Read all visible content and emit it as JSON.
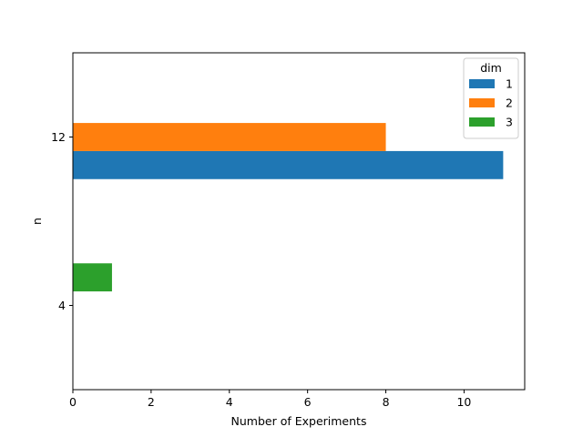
{
  "chart_data": {
    "type": "bar",
    "orientation": "horizontal",
    "categories": [
      "4",
      "12"
    ],
    "series": [
      {
        "name": "1",
        "values": [
          0,
          11
        ],
        "color": "#1f77b4"
      },
      {
        "name": "2",
        "values": [
          0,
          8
        ],
        "color": "#ff7f0e"
      },
      {
        "name": "3",
        "values": [
          1,
          0
        ],
        "color": "#2ca02c"
      }
    ],
    "xlabel": "Number of Experiments",
    "ylabel": "n",
    "xlim": [
      0,
      11.55
    ],
    "xticks": [
      0,
      2,
      4,
      6,
      8,
      10
    ],
    "grid": false,
    "legend": {
      "title": "dim",
      "position": "top-right"
    }
  }
}
